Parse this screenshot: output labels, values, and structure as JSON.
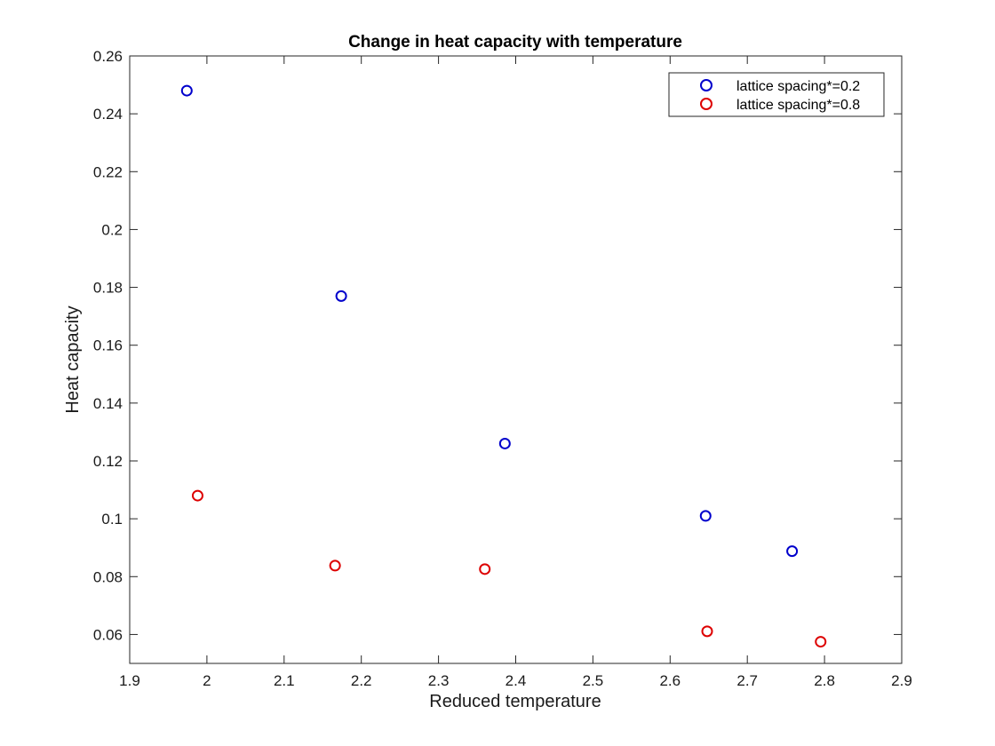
{
  "chart_data": {
    "type": "scatter",
    "title": "Change in heat capacity with temperature",
    "xlabel": "Reduced temperature",
    "ylabel": "Heat capacity",
    "xlim": [
      1.9,
      2.9
    ],
    "ylim": [
      0.05,
      0.26
    ],
    "xticks": [
      1.9,
      2.0,
      2.1,
      2.2,
      2.3,
      2.4,
      2.5,
      2.6,
      2.7,
      2.8,
      2.9
    ],
    "xtick_labels": [
      "1.9",
      "2",
      "2.1",
      "2.2",
      "2.3",
      "2.4",
      "2.5",
      "2.6",
      "2.7",
      "2.8",
      "2.9"
    ],
    "yticks": [
      0.06,
      0.08,
      0.1,
      0.12,
      0.14,
      0.16,
      0.18,
      0.2,
      0.22,
      0.24,
      0.26
    ],
    "ytick_labels": [
      "0.06",
      "0.08",
      "0.1",
      "0.12",
      "0.14",
      "0.16",
      "0.18",
      "0.2",
      "0.22",
      "0.24",
      "0.26"
    ],
    "grid": false,
    "legend_position": "top-right",
    "series": [
      {
        "name": "lattice spacing*=0.2",
        "color": "#0000cc",
        "marker": "circle-open",
        "x": [
          1.974,
          2.174,
          2.386,
          2.646,
          2.758
        ],
        "y": [
          0.248,
          0.177,
          0.126,
          0.101,
          0.0888
        ]
      },
      {
        "name": "lattice spacing*=0.8",
        "color": "#dd0000",
        "marker": "circle-open",
        "x": [
          1.988,
          2.166,
          2.36,
          2.648,
          2.795
        ],
        "y": [
          0.108,
          0.0838,
          0.0826,
          0.0611,
          0.0575
        ]
      }
    ]
  }
}
